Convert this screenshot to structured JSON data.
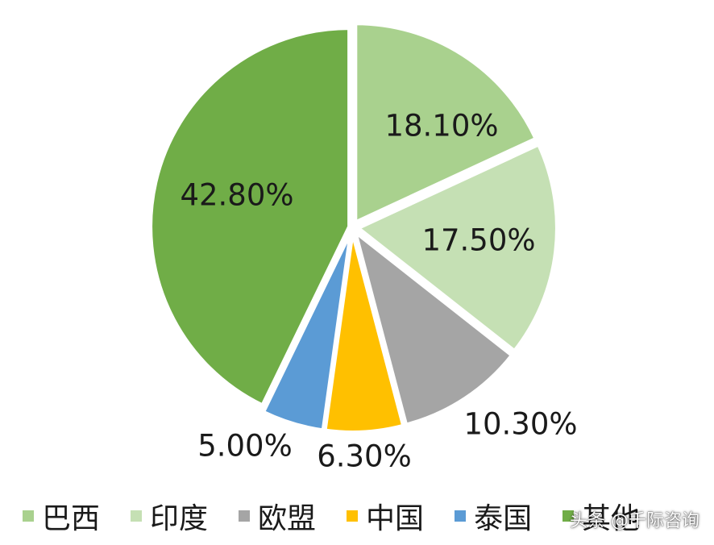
{
  "chart_data": {
    "type": "pie",
    "start_angle_deg": 0,
    "direction": "clockwise",
    "slices": [
      {
        "label": "巴西",
        "value": 18.1,
        "display": "18.10%",
        "color": "#a9d18e"
      },
      {
        "label": "印度",
        "value": 17.5,
        "display": "17.50%",
        "color": "#c5e0b4"
      },
      {
        "label": "欧盟",
        "value": 10.3,
        "display": "10.30%",
        "color": "#a5a5a5"
      },
      {
        "label": "中国",
        "value": 6.3,
        "display": "6.30%",
        "color": "#ffc000"
      },
      {
        "label": "泰国",
        "value": 5.0,
        "display": "5.00%",
        "color": "#5b9bd5"
      },
      {
        "label": "其他",
        "value": 42.8,
        "display": "42.80%",
        "color": "#70ad47"
      }
    ],
    "legend_position": "bottom"
  },
  "watermark": {
    "text": "头条 @千际咨询"
  }
}
